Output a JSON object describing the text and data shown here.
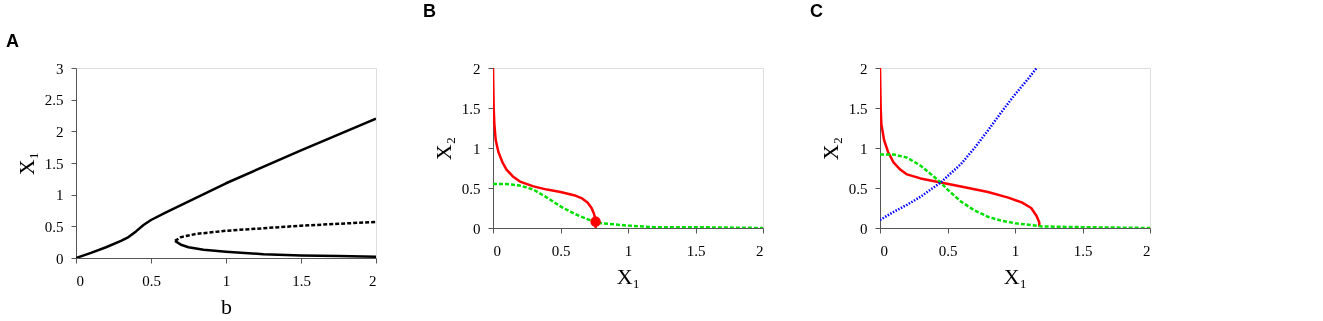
{
  "chart_data": [
    {
      "type": "line",
      "title": "A",
      "xlabel": "b",
      "ylabel": "X₁",
      "xlim": [
        0,
        2
      ],
      "ylim": [
        0,
        3
      ],
      "xticks": [
        0,
        0.5,
        1,
        1.5,
        2
      ],
      "yticks": [
        0,
        0.5,
        1,
        1.5,
        2,
        2.5,
        3
      ],
      "grid": false,
      "series": [
        {
          "color": "#000000",
          "line_style": "solid",
          "x": [
            0,
            0.1,
            0.2,
            0.3,
            0.35,
            0.4,
            0.45,
            0.5,
            0.6,
            0.8,
            1,
            1.5,
            2
          ],
          "values": [
            0,
            0.08,
            0.17,
            0.27,
            0.33,
            0.42,
            0.52,
            0.6,
            0.72,
            0.95,
            1.18,
            1.7,
            2.2
          ]
        },
        {
          "color": "#000000",
          "line_style": "dashed",
          "x": [
            0.66,
            0.7,
            0.8,
            1,
            1.25,
            1.5,
            1.75,
            2
          ],
          "values": [
            0.27,
            0.33,
            0.38,
            0.43,
            0.47,
            0.51,
            0.54,
            0.57
          ]
        },
        {
          "color": "#000000",
          "line_style": "solid",
          "x": [
            0.66,
            0.7,
            0.75,
            0.85,
            1,
            1.25,
            1.5,
            1.75,
            2
          ],
          "values": [
            0.27,
            0.21,
            0.17,
            0.13,
            0.1,
            0.06,
            0.04,
            0.03,
            0.02
          ]
        }
      ]
    },
    {
      "type": "line",
      "title": "B",
      "xlabel": "X₁",
      "ylabel": "X₂",
      "xlim": [
        0,
        2
      ],
      "ylim": [
        0,
        2
      ],
      "xticks": [
        0,
        0.5,
        1,
        1.5,
        2
      ],
      "yticks": [
        0,
        0.5,
        1,
        1.5,
        2
      ],
      "grid": false,
      "series": [
        {
          "color": "#ff0000",
          "line_style": "solid",
          "x": [
            0,
            0.005,
            0.01,
            0.02,
            0.04,
            0.07,
            0.1,
            0.15,
            0.2,
            0.3,
            0.4,
            0.5,
            0.6,
            0.66,
            0.7,
            0.73,
            0.75,
            0.76,
            0.76
          ],
          "values": [
            2,
            1.5,
            1.3,
            1.1,
            0.95,
            0.82,
            0.73,
            0.64,
            0.58,
            0.52,
            0.48,
            0.45,
            0.41,
            0.37,
            0.32,
            0.25,
            0.17,
            0.08,
            0
          ]
        },
        {
          "color": "#00e000",
          "line_style": "dashed",
          "x": [
            0,
            0.1,
            0.2,
            0.3,
            0.4,
            0.5,
            0.6,
            0.7,
            0.8,
            1,
            1.2,
            1.5,
            2
          ],
          "values": [
            0.55,
            0.55,
            0.53,
            0.48,
            0.38,
            0.27,
            0.18,
            0.11,
            0.06,
            0.03,
            0.01,
            0.01,
            0
          ]
        },
        {
          "type": "scatter",
          "marker": "circle",
          "color": "#ff0000",
          "x": [
            0.76
          ],
          "values": [
            0.08
          ]
        }
      ]
    },
    {
      "type": "line",
      "title": "C",
      "xlabel": "X₁",
      "ylabel": "X₂",
      "xlim": [
        0,
        2
      ],
      "ylim": [
        0,
        2
      ],
      "xticks": [
        0,
        0.5,
        1,
        1.5,
        2
      ],
      "yticks": [
        0,
        0.5,
        1,
        1.5,
        2
      ],
      "grid": false,
      "series": [
        {
          "color": "#ff0000",
          "line_style": "solid",
          "x": [
            0,
            0.005,
            0.01,
            0.03,
            0.06,
            0.1,
            0.15,
            0.2,
            0.3,
            0.45,
            0.6,
            0.8,
            0.95,
            1.05,
            1.12,
            1.16,
            1.18,
            1.18
          ],
          "values": [
            2,
            1.5,
            1.3,
            1.1,
            0.95,
            0.82,
            0.73,
            0.67,
            0.62,
            0.57,
            0.52,
            0.45,
            0.38,
            0.32,
            0.25,
            0.15,
            0.07,
            0.02
          ]
        },
        {
          "color": "#00e000",
          "line_style": "dashed",
          "x": [
            0,
            0.1,
            0.2,
            0.3,
            0.4,
            0.45,
            0.5,
            0.6,
            0.7,
            0.8,
            0.9,
            1,
            1.2,
            1.5,
            2
          ],
          "values": [
            0.92,
            0.92,
            0.88,
            0.78,
            0.64,
            0.57,
            0.48,
            0.33,
            0.22,
            0.14,
            0.09,
            0.06,
            0.02,
            0.01,
            0
          ]
        },
        {
          "color": "#0000ff",
          "line_style": "dotted",
          "x": [
            0,
            0.1,
            0.2,
            0.3,
            0.45,
            0.6,
            0.7,
            0.8,
            0.9,
            1,
            1.1,
            1.16
          ],
          "values": [
            0.1,
            0.2,
            0.29,
            0.39,
            0.57,
            0.8,
            1.0,
            1.22,
            1.45,
            1.67,
            1.87,
            2
          ]
        }
      ]
    }
  ]
}
